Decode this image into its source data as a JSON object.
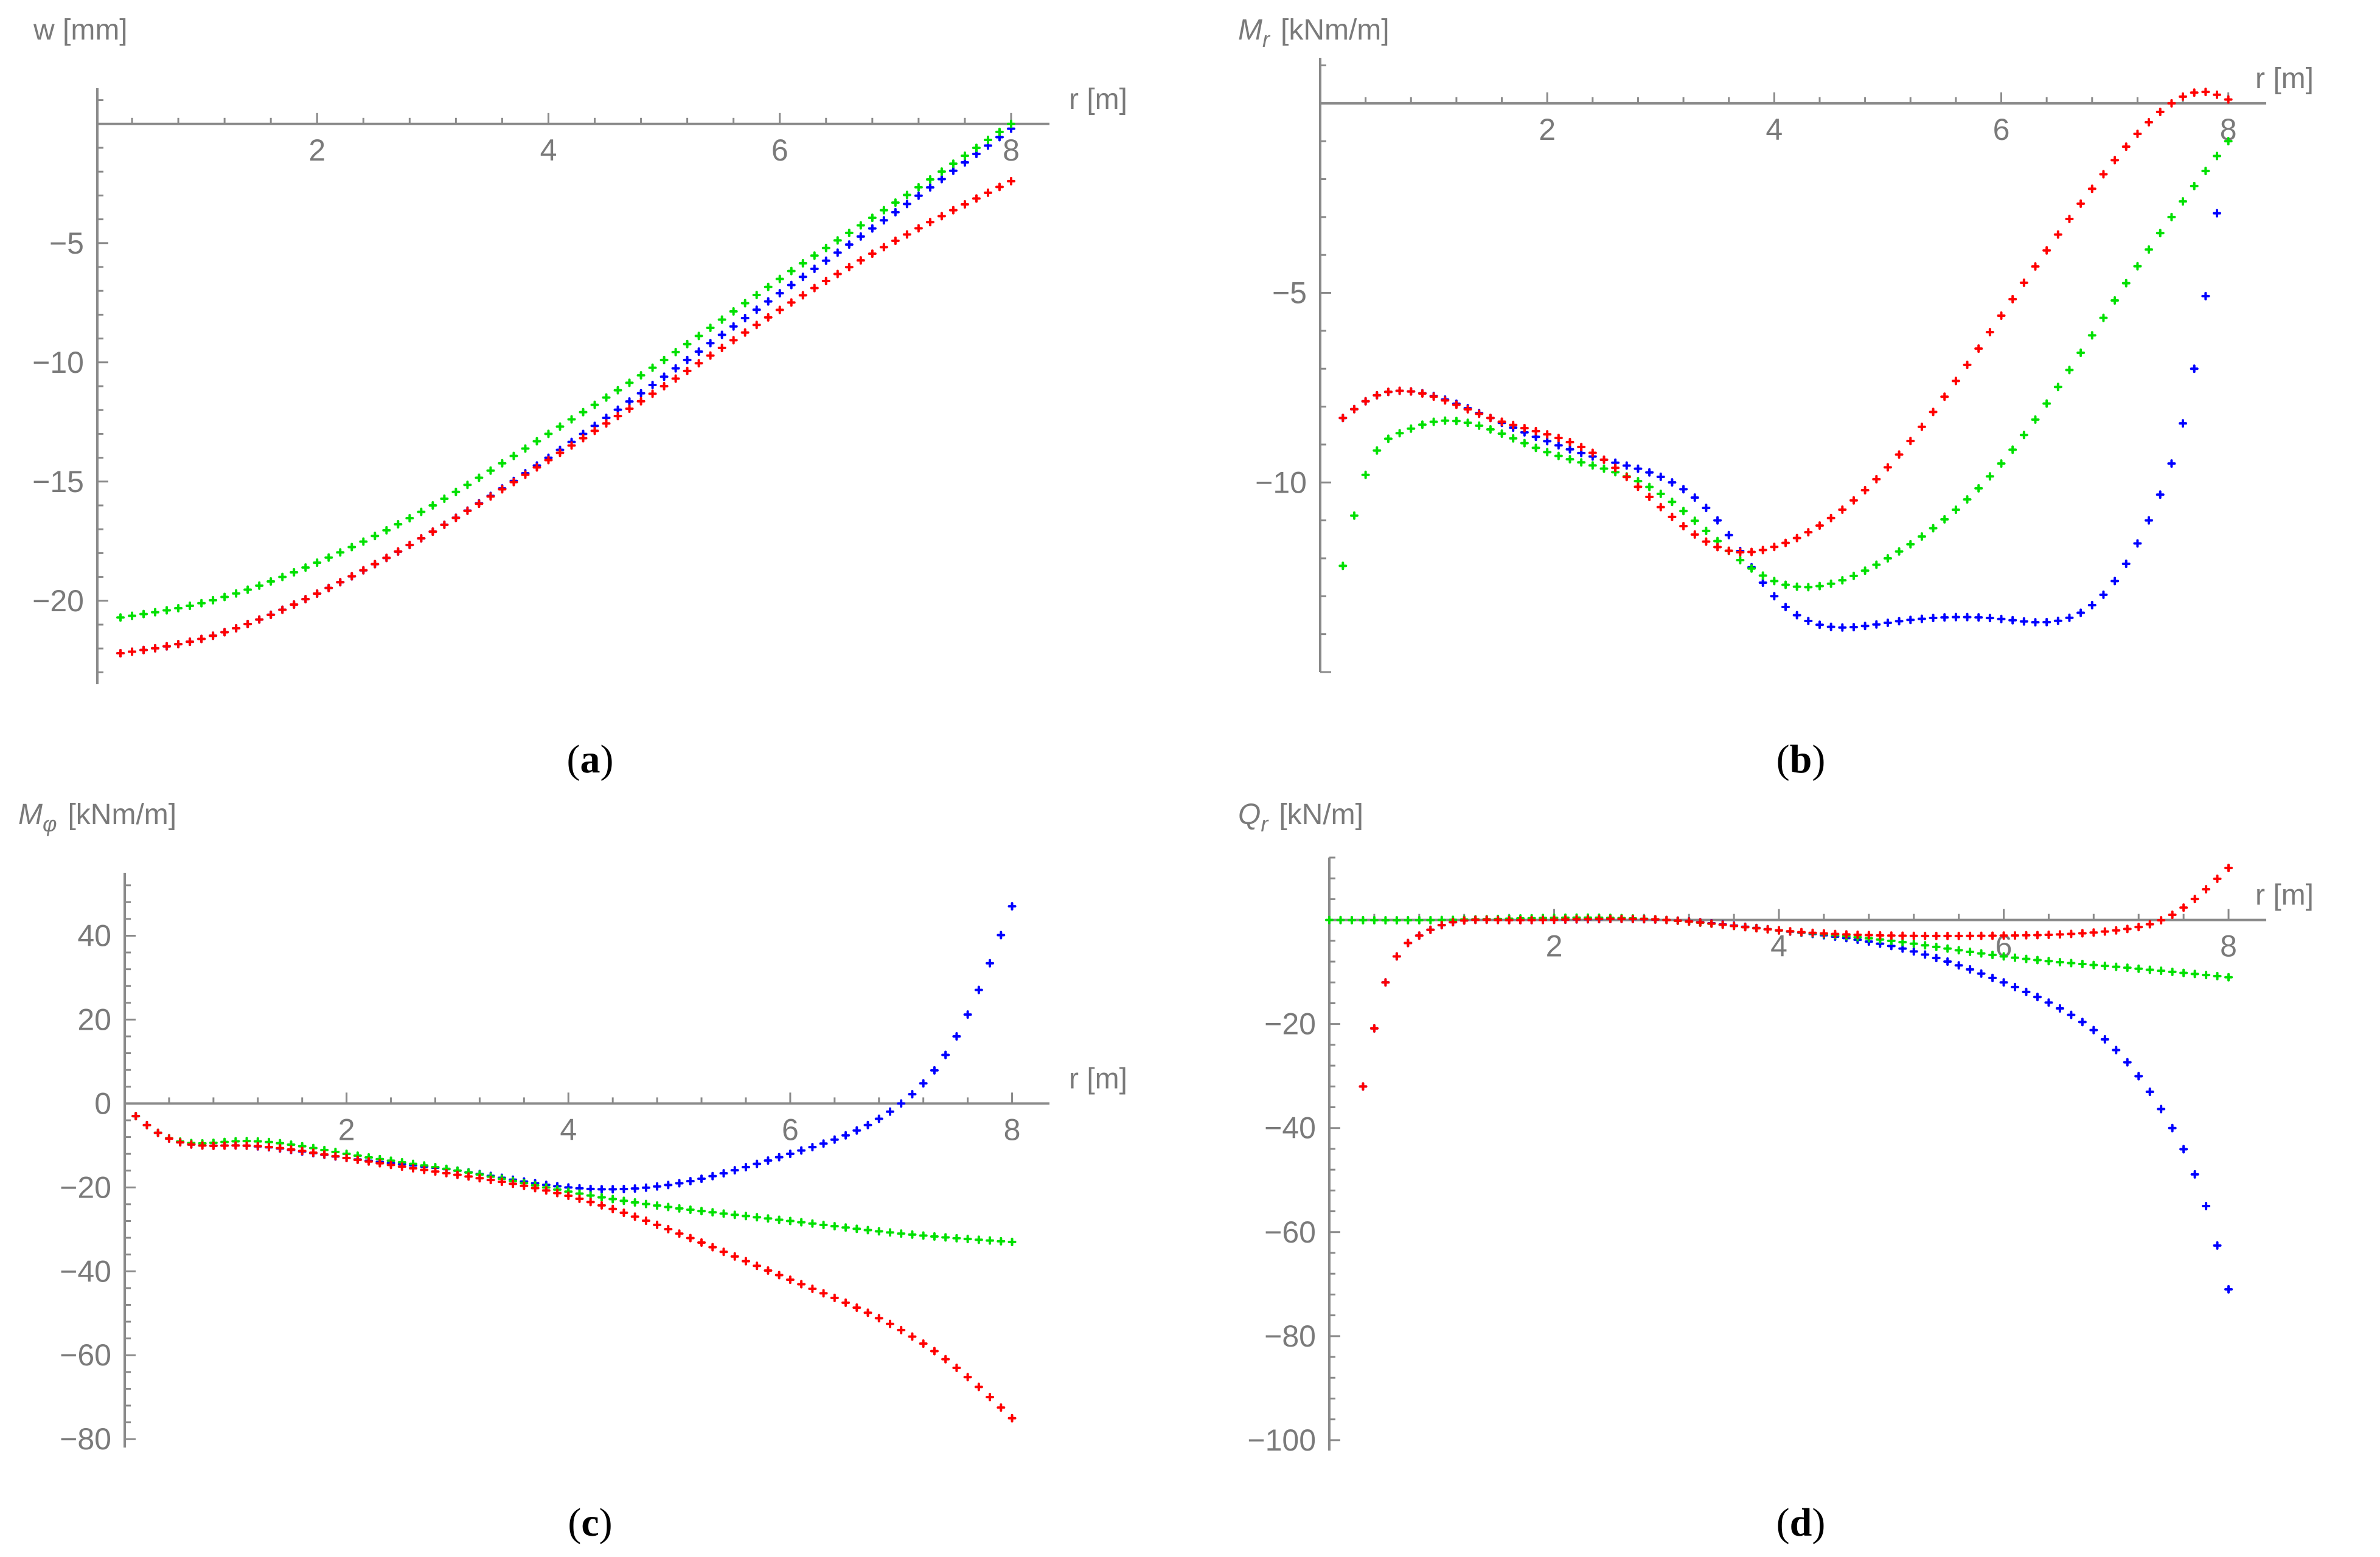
{
  "chart_data": [
    {
      "id": "a",
      "type": "scatter",
      "panel_label_open": "(",
      "panel_label_letter": "a",
      "panel_label_close": ")",
      "xlabel": "r [m]",
      "ylabel": "w [mm]",
      "ylabel_main": "w",
      "ylabel_sub": "",
      "ylabel_unit": "[mm]",
      "xlim": [
        0.1,
        8.2
      ],
      "ylim": [
        -23.5,
        1.5
      ],
      "xticks": [
        2,
        4,
        6,
        8
      ],
      "yticks": [
        -5,
        -10,
        -15,
        -20
      ],
      "series": [
        {
          "name": "blue",
          "color": "#0000ff",
          "kind": "spline",
          "xrange": [
            0.3,
            8.0
          ],
          "knots": [
            [
              0.3,
              -22.2
            ],
            [
              1,
              -21.6
            ],
            [
              2,
              -19.7
            ],
            [
              3,
              -17.1
            ],
            [
              4,
              -14.0
            ],
            [
              5,
              -10.6
            ],
            [
              6,
              -7.1
            ],
            [
              7,
              -3.7
            ],
            [
              8,
              -0.2
            ]
          ]
        },
        {
          "name": "green",
          "color": "#00e000",
          "kind": "spline",
          "xrange": [
            0.3,
            8.0
          ],
          "knots": [
            [
              0.3,
              -20.7
            ],
            [
              1,
              -20.1
            ],
            [
              2,
              -18.4
            ],
            [
              3,
              -16.0
            ],
            [
              4,
              -13.0
            ],
            [
              5,
              -9.9
            ],
            [
              6,
              -6.5
            ],
            [
              7,
              -3.3
            ],
            [
              8,
              0.0
            ]
          ]
        },
        {
          "name": "red",
          "color": "#ff0000",
          "kind": "spline",
          "xrange": [
            0.3,
            8.0
          ],
          "knots": [
            [
              0.3,
              -22.2
            ],
            [
              1,
              -21.6
            ],
            [
              2,
              -19.7
            ],
            [
              3,
              -17.1
            ],
            [
              4,
              -14.1
            ],
            [
              5,
              -11.0
            ],
            [
              6,
              -7.8
            ],
            [
              7,
              -4.9
            ],
            [
              8,
              -2.4
            ]
          ]
        }
      ]
    },
    {
      "id": "b",
      "type": "scatter",
      "panel_label_open": "(",
      "panel_label_letter": "b",
      "panel_label_close": ")",
      "xlabel": "r [m]",
      "ylabel": "Mr [kNm/m]",
      "ylabel_main": "M",
      "ylabel_sub": "r",
      "ylabel_unit": "[kNm/m]",
      "xlim": [
        0.0,
        8.2
      ],
      "ylim": [
        -15.0,
        1.2
      ],
      "xticks": [
        2,
        4,
        6,
        8
      ],
      "yticks": [
        -5,
        -10
      ],
      "series": [
        {
          "name": "blue",
          "color": "#0000ff",
          "kind": "spline",
          "xrange": [
            0.2,
            7.9
          ],
          "knots": [
            [
              0.2,
              -8.3
            ],
            [
              0.5,
              -7.7
            ],
            [
              0.8,
              -7.6
            ],
            [
              1.5,
              -8.3
            ],
            [
              2.5,
              -9.4
            ],
            [
              3.5,
              -11.0
            ],
            [
              4,
              -13.0
            ],
            [
              5,
              -13.7
            ],
            [
              6,
              -13.6
            ],
            [
              7,
              -12.6
            ],
            [
              7.3,
              -11.0
            ],
            [
              7.5,
              -9.5
            ],
            [
              7.7,
              -7.0
            ],
            [
              7.9,
              -2.9
            ]
          ]
        },
        {
          "name": "green",
          "color": "#00e000",
          "kind": "spline",
          "xrange": [
            0.2,
            8.0
          ],
          "knots": [
            [
              0.2,
              -12.2
            ],
            [
              0.4,
              -9.8
            ],
            [
              0.7,
              -8.7
            ],
            [
              1,
              -8.4
            ],
            [
              2,
              -9.2
            ],
            [
              3,
              -10.3
            ],
            [
              4,
              -12.6
            ],
            [
              5,
              -12.0
            ],
            [
              6,
              -9.5
            ],
            [
              7,
              -5.2
            ],
            [
              7.5,
              -3.0
            ],
            [
              8,
              -1.0
            ]
          ]
        },
        {
          "name": "red",
          "color": "#ff0000",
          "kind": "spline",
          "xrange": [
            0.2,
            8.0
          ],
          "knots": [
            [
              0.2,
              -8.3
            ],
            [
              0.5,
              -7.7
            ],
            [
              0.8,
              -7.6
            ],
            [
              1.5,
              -8.3
            ],
            [
              2.5,
              -9.4
            ],
            [
              3.6,
              -11.8
            ],
            [
              4,
              -11.7
            ],
            [
              5,
              -9.6
            ],
            [
              6,
              -5.6
            ],
            [
              7,
              -1.5
            ],
            [
              7.5,
              0.0
            ],
            [
              7.8,
              0.3
            ],
            [
              8,
              0.1
            ]
          ]
        }
      ]
    },
    {
      "id": "c",
      "type": "scatter",
      "panel_label_open": "(",
      "panel_label_letter": "c",
      "panel_label_close": ")",
      "xlabel": "r [m]",
      "ylabel": "Mφ [kNm/m]",
      "ylabel_main": "M",
      "ylabel_sub": "φ",
      "ylabel_unit": "[kNm/m]",
      "xlim": [
        0.0,
        8.2
      ],
      "ylim": [
        -82.0,
        55.0
      ],
      "xticks": [
        2,
        4,
        6,
        8
      ],
      "yticks": [
        40,
        20,
        0,
        -20,
        -40,
        -60,
        -80
      ],
      "series": [
        {
          "name": "blue",
          "color": "#0000ff",
          "kind": "spline",
          "xrange": [
            0.1,
            8.0
          ],
          "knots": [
            [
              0.1,
              -3
            ],
            [
              0.3,
              -7
            ],
            [
              1,
              -10
            ],
            [
              2,
              -13
            ],
            [
              3,
              -16
            ],
            [
              4,
              -20
            ],
            [
              5,
              -19
            ],
            [
              6,
              -12
            ],
            [
              7,
              0
            ],
            [
              7.5,
              16
            ],
            [
              8,
              47
            ]
          ]
        },
        {
          "name": "green",
          "color": "#00e000",
          "kind": "spline",
          "xrange": [
            0.1,
            8.0
          ],
          "knots": [
            [
              0.1,
              -3
            ],
            [
              0.3,
              -7
            ],
            [
              1,
              -9
            ],
            [
              2,
              -12
            ],
            [
              3,
              -16
            ],
            [
              4,
              -21
            ],
            [
              5,
              -25
            ],
            [
              6,
              -28
            ],
            [
              7,
              -31
            ],
            [
              8,
              -33
            ]
          ]
        },
        {
          "name": "red",
          "color": "#ff0000",
          "kind": "spline",
          "xrange": [
            0.1,
            8.0
          ],
          "knots": [
            [
              0.1,
              -3
            ],
            [
              0.3,
              -7
            ],
            [
              1,
              -10
            ],
            [
              2,
              -13
            ],
            [
              3,
              -17
            ],
            [
              4,
              -22
            ],
            [
              5,
              -31
            ],
            [
              6,
              -42
            ],
            [
              7,
              -54
            ],
            [
              7.5,
              -63
            ],
            [
              8,
              -75
            ]
          ]
        }
      ]
    },
    {
      "id": "d",
      "type": "scatter",
      "panel_label_open": "(",
      "panel_label_letter": "d",
      "panel_label_close": ")",
      "xlabel": "r [m]",
      "ylabel": "Qr [kN/m]",
      "ylabel_main": "Q",
      "ylabel_sub": "r",
      "ylabel_unit": "[kN/m]",
      "xlim": [
        0.0,
        8.2
      ],
      "ylim": [
        -102.0,
        12.0
      ],
      "xticks": [
        2,
        4,
        6,
        8
      ],
      "yticks": [
        -20,
        -40,
        -60,
        -80,
        -100
      ],
      "series": [
        {
          "name": "blue",
          "color": "#0000ff",
          "kind": "spline",
          "xrange": [
            0.3,
            8.0
          ],
          "knots": [
            [
              0.3,
              -32
            ],
            [
              0.5,
              -12
            ],
            [
              0.6,
              -7
            ],
            [
              0.8,
              -3
            ],
            [
              1,
              -1
            ],
            [
              1.5,
              0
            ],
            [
              3,
              0
            ],
            [
              4,
              -2
            ],
            [
              5,
              -5
            ],
            [
              6,
              -12
            ],
            [
              6.5,
              -17
            ],
            [
              7,
              -25
            ],
            [
              7.5,
              -40
            ],
            [
              7.8,
              -55
            ],
            [
              8,
              -71
            ]
          ]
        },
        {
          "name": "green",
          "color": "#00e000",
          "kind": "spline",
          "xrange": [
            0.0,
            8.0
          ],
          "knots": [
            [
              0,
              0
            ],
            [
              1,
              0
            ],
            [
              3,
              0
            ],
            [
              4,
              -2
            ],
            [
              5,
              -4
            ],
            [
              6,
              -7
            ],
            [
              7,
              -9
            ],
            [
              8,
              -11
            ]
          ]
        },
        {
          "name": "red",
          "color": "#ff0000",
          "kind": "spline",
          "xrange": [
            0.3,
            8.0
          ],
          "knots": [
            [
              0.3,
              -32
            ],
            [
              0.5,
              -12
            ],
            [
              0.6,
              -7
            ],
            [
              0.8,
              -3
            ],
            [
              1,
              -1
            ],
            [
              1.5,
              0
            ],
            [
              3,
              0
            ],
            [
              4,
              -2
            ],
            [
              5,
              -3
            ],
            [
              6,
              -3
            ],
            [
              7,
              -2
            ],
            [
              7.5,
              1
            ],
            [
              8,
              10
            ]
          ]
        }
      ]
    }
  ]
}
